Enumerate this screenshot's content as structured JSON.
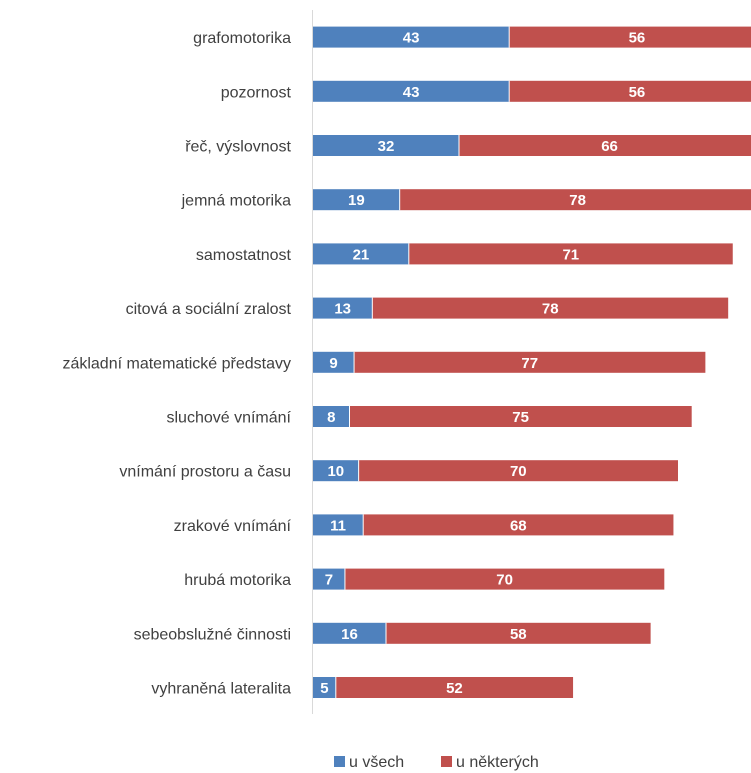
{
  "chart_data": {
    "type": "bar",
    "orientation": "horizontal",
    "stacked": true,
    "categories": [
      "grafomotorika",
      "pozornost",
      "řeč, výslovnost",
      "jemná motorika",
      "samostatnost",
      "citová a sociální zralost",
      "základní matematické představy",
      "sluchové vnímání",
      "vnímání prostoru a času",
      "zrakové vnímání",
      "hrubá motorika",
      "sebeobslužné činnosti",
      "vyhraněná lateralita"
    ],
    "series": [
      {
        "name": "u všech",
        "color": "#4f81bd",
        "values": [
          43,
          43,
          32,
          19,
          21,
          13,
          9,
          8,
          10,
          11,
          7,
          16,
          5
        ]
      },
      {
        "name": "u některých",
        "color": "#c0504d",
        "values": [
          56,
          56,
          66,
          78,
          71,
          78,
          77,
          75,
          70,
          68,
          70,
          58,
          52
        ]
      }
    ],
    "xlim": [
      0,
      96
    ],
    "grid": false,
    "legend": "bottom"
  }
}
